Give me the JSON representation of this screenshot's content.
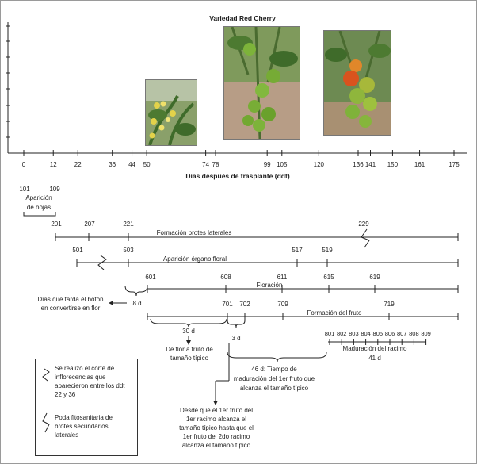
{
  "title": "Variedad Red Cherry",
  "axis": {
    "label": "Días después de trasplante (ddt)",
    "ticks": [
      "0",
      "12",
      "22",
      "36",
      "44",
      "50",
      "74",
      "78",
      "99",
      "105",
      "120",
      "136",
      "141",
      "150",
      "161",
      "175"
    ]
  },
  "stages": {
    "hojas": {
      "codes": [
        "101",
        "109"
      ],
      "label_1": "Aparición",
      "label_2": "de hojas"
    },
    "brotes": {
      "codes": [
        "201",
        "207",
        "221",
        "229"
      ],
      "label": "Formación brotes laterales"
    },
    "organo": {
      "codes": [
        "501",
        "503",
        "517",
        "519"
      ],
      "label": "Aparición órgano floral"
    },
    "floracion": {
      "codes": [
        "601",
        "608",
        "611",
        "615",
        "619"
      ],
      "label": "Floración"
    },
    "fruto": {
      "codes": [
        "701",
        "702",
        "709",
        "719"
      ],
      "label": "Formación del fruto"
    },
    "racimo": {
      "codes": [
        "801",
        "802",
        "803",
        "804",
        "805",
        "806",
        "807",
        "808",
        "809"
      ],
      "label": "Maduración del racimo",
      "days": "41 d"
    }
  },
  "notes": {
    "boton_1": "Días que tarda el botón",
    "boton_2": "en convertirse en flor",
    "boton_days": "8 d",
    "flor_days": "30 d",
    "flor_1": "De flor a fruto de",
    "flor_2": "tamaño típico",
    "racimo_days": "3 d",
    "madura_1": "46 d: Tiempo de",
    "madura_2": "maduración del 1er fruto que",
    "madura_3": "alcanza el tamaño típico",
    "desde_1": "Desde que el 1er fruto del",
    "desde_2": "1er racimo alcanza el",
    "desde_3": "tamaño típico hasta que el",
    "desde_4": "1er fruto del 2do racimo",
    "desde_5": "alcanza el tamaño típico"
  },
  "legend": {
    "corte_1": "Se realizó el corte de",
    "corte_2": "inflorecencias que",
    "corte_3": "aparecieron entre los ddt",
    "corte_4": "22 y 36",
    "poda_1": "Poda fitosanitaria de",
    "poda_2": "brotes secundarios",
    "poda_3": "laterales"
  },
  "colors": {
    "line": "#222222",
    "tomato_green": "#6aa12c",
    "tomato_red": "#d9531e",
    "leaf": "#3f6b2a",
    "flower": "#e3d24a"
  }
}
